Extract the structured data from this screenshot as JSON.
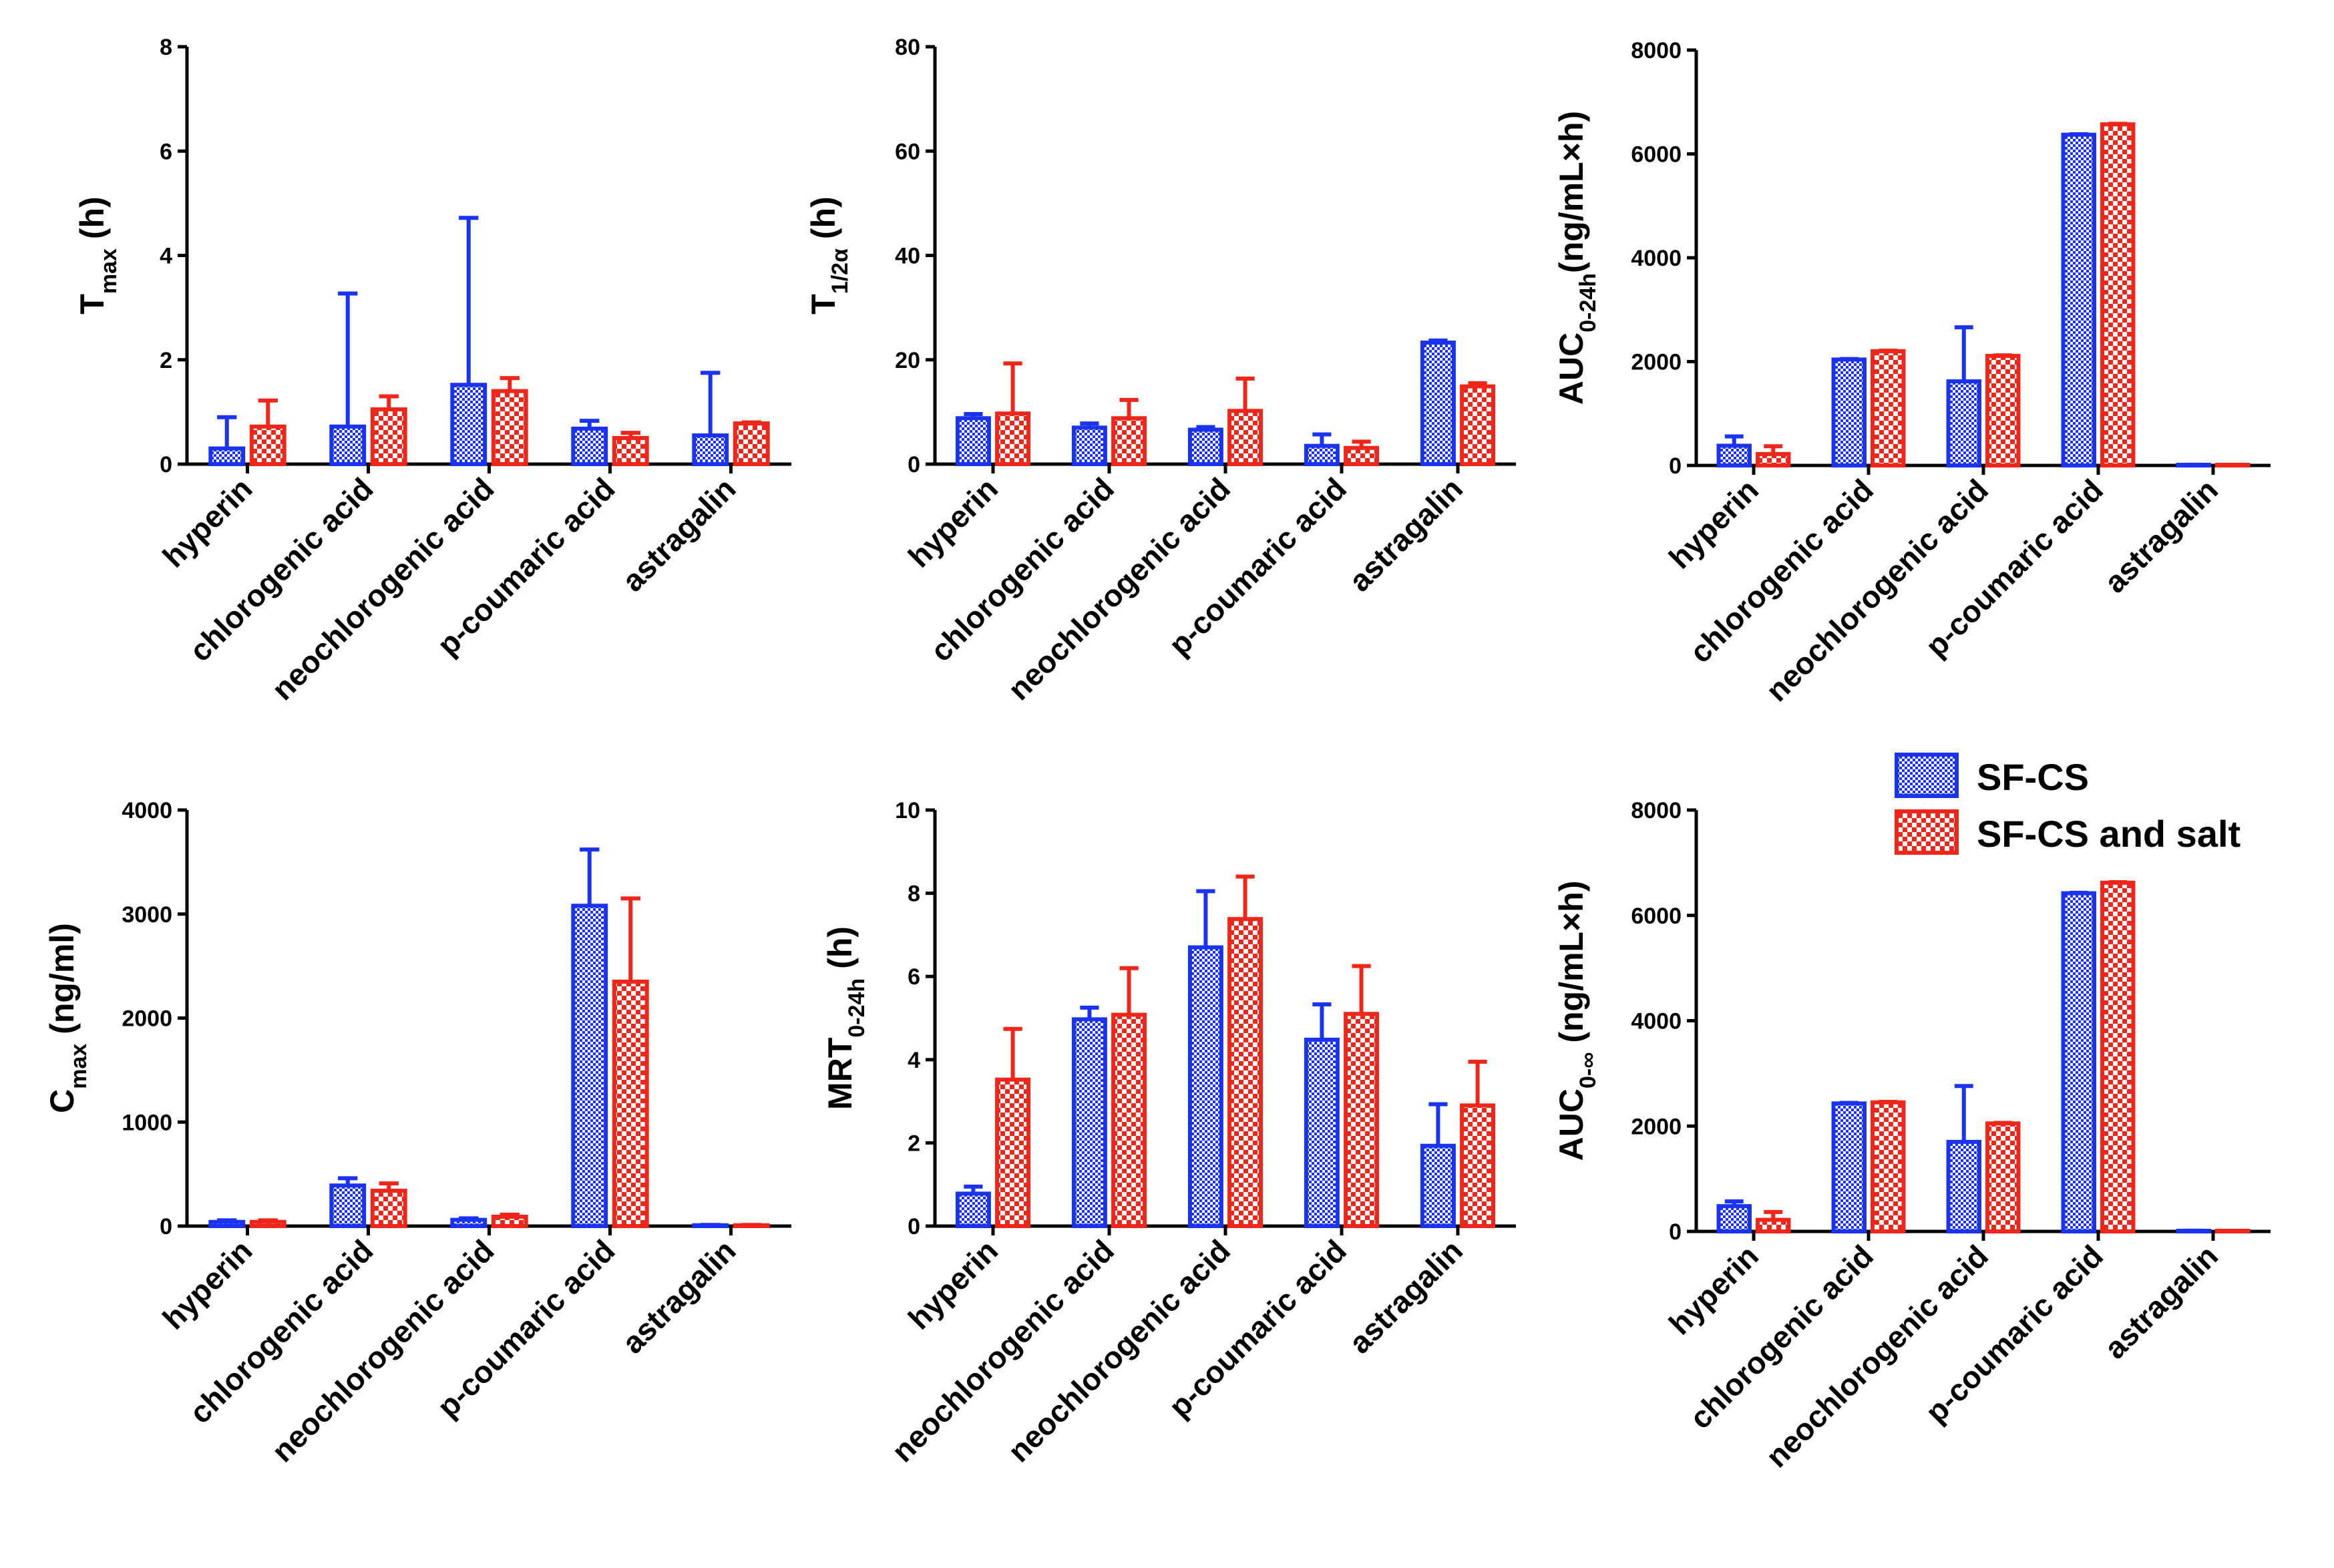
{
  "legend": {
    "items": [
      {
        "label": "SF-CS",
        "color": "#1a33f0",
        "pattern": "small-check"
      },
      {
        "label": "SF-CS and salt",
        "color": "#f0261a",
        "pattern": "large-check"
      }
    ]
  },
  "chart_data": [
    {
      "type": "bar",
      "id": "tmax",
      "ylabel": {
        "main": "T",
        "sub": "max",
        "post": " (h)"
      },
      "ylim": [
        0,
        8
      ],
      "yticks": [
        0,
        2,
        4,
        6,
        8
      ],
      "categories": [
        "hyperin",
        "chlorogenic acid",
        "neochlorogenic acid",
        "p-coumaric acid",
        "astragalin"
      ],
      "series": [
        {
          "name": "SF-CS",
          "values": [
            0.3,
            0.72,
            1.52,
            0.68,
            0.55
          ],
          "errors": [
            0.6,
            2.55,
            3.2,
            0.15,
            1.2
          ]
        },
        {
          "name": "SF-CS and salt",
          "values": [
            0.72,
            1.05,
            1.4,
            0.5,
            0.78
          ],
          "errors": [
            0.5,
            0.25,
            0.25,
            0.1,
            0.02
          ]
        }
      ]
    },
    {
      "type": "bar",
      "id": "t-half",
      "ylabel": {
        "main": "T",
        "sub": "1/2α",
        "post": " (h)"
      },
      "ylim": [
        0,
        80
      ],
      "yticks": [
        0,
        20,
        40,
        60,
        80
      ],
      "categories": [
        "hyperin",
        "chlorogenic acid",
        "neochlorogenic acid",
        "p-coumaric acid",
        "astragalin"
      ],
      "series": [
        {
          "name": "SF-CS",
          "values": [
            8.8,
            7.0,
            6.6,
            3.5,
            23.3
          ],
          "errors": [
            0.8,
            0.8,
            0.5,
            2.2,
            0.4
          ]
        },
        {
          "name": "SF-CS and salt",
          "values": [
            9.7,
            8.8,
            10.2,
            3.1,
            14.9
          ],
          "errors": [
            9.6,
            3.5,
            6.2,
            1.2,
            0.6
          ]
        }
      ]
    },
    {
      "type": "bar",
      "id": "auc-24h",
      "ylabel": {
        "main": "AUC",
        "sub": "0-24h",
        "post": "(ng/mL×h)"
      },
      "ylim": [
        0,
        8000
      ],
      "yticks": [
        0,
        2000,
        4000,
        6000,
        8000
      ],
      "categories": [
        "hyperin",
        "chlorogenic acid",
        "neochlorogenic acid",
        "p-coumaric acid",
        "astragalin"
      ],
      "series": [
        {
          "name": "SF-CS",
          "values": [
            380,
            2040,
            1620,
            6370,
            10
          ],
          "errors": [
            180,
            10,
            1040,
            10,
            5
          ]
        },
        {
          "name": "SF-CS and salt",
          "values": [
            220,
            2200,
            2110,
            6570,
            5
          ],
          "errors": [
            150,
            10,
            10,
            10,
            2
          ]
        }
      ]
    },
    {
      "type": "bar",
      "id": "cmax",
      "ylabel": {
        "main": "C",
        "sub": "max",
        "post": " (ng/ml)"
      },
      "ylim": [
        0,
        4000
      ],
      "yticks": [
        0,
        1000,
        2000,
        3000,
        4000
      ],
      "categories": [
        "hyperin",
        "chlorogenic acid",
        "neochlorogenic acid",
        "p-coumaric acid",
        "astragalin"
      ],
      "series": [
        {
          "name": "SF-CS",
          "values": [
            40,
            390,
            60,
            3080,
            8
          ],
          "errors": [
            15,
            70,
            15,
            540,
            3
          ]
        },
        {
          "name": "SF-CS and salt",
          "values": [
            40,
            340,
            90,
            2350,
            8
          ],
          "errors": [
            15,
            70,
            20,
            800,
            3
          ]
        }
      ]
    },
    {
      "type": "bar",
      "id": "mrt",
      "ylabel": {
        "main": "MRT",
        "sub": "0-24h",
        "post": " (h)"
      },
      "ylim": [
        0,
        10
      ],
      "yticks": [
        0,
        2,
        4,
        6,
        8,
        10
      ],
      "categories": [
        "hyperin",
        "neochlorogenic acid",
        "neochlorogenic acid",
        "p-coumaric acid",
        "astragalin"
      ],
      "series": [
        {
          "name": "SF-CS",
          "values": [
            0.78,
            4.97,
            6.7,
            4.48,
            1.93
          ],
          "errors": [
            0.17,
            0.28,
            1.35,
            0.85,
            1.0
          ]
        },
        {
          "name": "SF-CS and salt",
          "values": [
            3.52,
            5.08,
            7.38,
            5.1,
            2.9
          ],
          "errors": [
            1.22,
            1.12,
            1.02,
            1.15,
            1.05
          ]
        }
      ]
    },
    {
      "type": "bar",
      "id": "auc-inf",
      "ylabel": {
        "main": "AUC",
        "sub": "0-∞",
        "post": " (ng/mL×h)"
      },
      "ylim": [
        0,
        8000
      ],
      "yticks": [
        0,
        2000,
        4000,
        6000,
        8000
      ],
      "categories": [
        "hyperin",
        "chlorogenic acid",
        "neochlorogenic acid",
        "p-coumaric acid",
        "astragalin"
      ],
      "series": [
        {
          "name": "SF-CS",
          "values": [
            480,
            2430,
            1700,
            6420,
            10
          ],
          "errors": [
            90,
            10,
            1060,
            10,
            5
          ]
        },
        {
          "name": "SF-CS and salt",
          "values": [
            220,
            2450,
            2050,
            6620,
            5
          ],
          "errors": [
            150,
            10,
            10,
            10,
            2
          ]
        }
      ]
    }
  ]
}
